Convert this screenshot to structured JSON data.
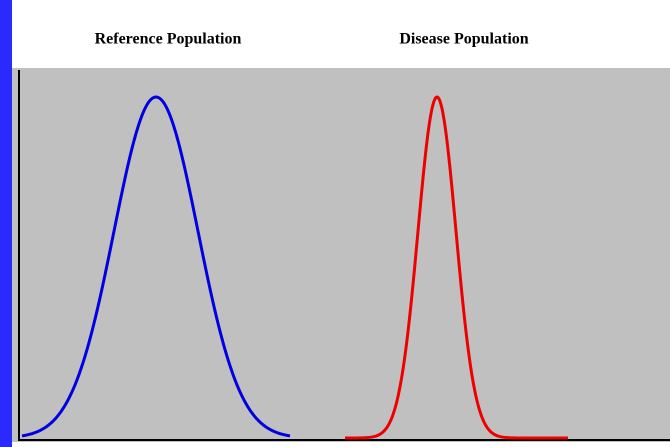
{
  "labels": {
    "left": "Reference Population",
    "right": "Disease Population"
  }
}
